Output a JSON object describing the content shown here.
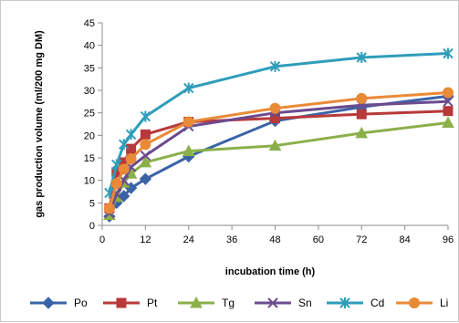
{
  "chart_data": {
    "type": "line",
    "title": "",
    "xlabel": "incubation time (h)",
    "ylabel": "gas production volume (ml/200 mg DM)",
    "x": [
      2,
      4,
      6,
      8,
      12,
      24,
      48,
      72,
      96
    ],
    "xlim": [
      0,
      96
    ],
    "xticks": [
      0,
      12,
      24,
      36,
      48,
      60,
      72,
      84,
      96
    ],
    "ylim": [
      0,
      45
    ],
    "yticks": [
      0,
      5,
      10,
      15,
      20,
      25,
      30,
      35,
      40,
      45
    ],
    "grid": false,
    "legend_position": "bottom",
    "series": [
      {
        "name": "Po",
        "color": "#3a63a7",
        "marker": "diamond",
        "values": [
          2.0,
          5.0,
          6.5,
          8.3,
          10.3,
          15.3,
          23.2,
          26.3,
          28.7
        ]
      },
      {
        "name": "Pt",
        "color": "#b8393a",
        "marker": "square",
        "values": [
          3.8,
          11.8,
          14.0,
          17.0,
          20.2,
          23.0,
          23.8,
          24.7,
          25.4
        ]
      },
      {
        "name": "Tg",
        "color": "#8bb04a",
        "marker": "triangle",
        "values": [
          2.3,
          6.3,
          9.5,
          11.5,
          14.0,
          16.5,
          17.7,
          20.5,
          22.8
        ]
      },
      {
        "name": "Sn",
        "color": "#6c4b8f",
        "marker": "x",
        "values": [
          2.7,
          7.0,
          10.0,
          13.0,
          15.5,
          22.0,
          25.0,
          26.7,
          27.5
        ]
      },
      {
        "name": "Cd",
        "color": "#2f9dba",
        "marker": "star",
        "values": [
          7.2,
          13.5,
          18.0,
          20.2,
          24.2,
          30.5,
          35.3,
          37.3,
          38.2
        ]
      },
      {
        "name": "Li",
        "color": "#e98a37",
        "marker": "circle",
        "values": [
          3.8,
          9.3,
          12.5,
          14.8,
          18.0,
          23.0,
          26.0,
          28.2,
          29.5
        ]
      }
    ]
  }
}
